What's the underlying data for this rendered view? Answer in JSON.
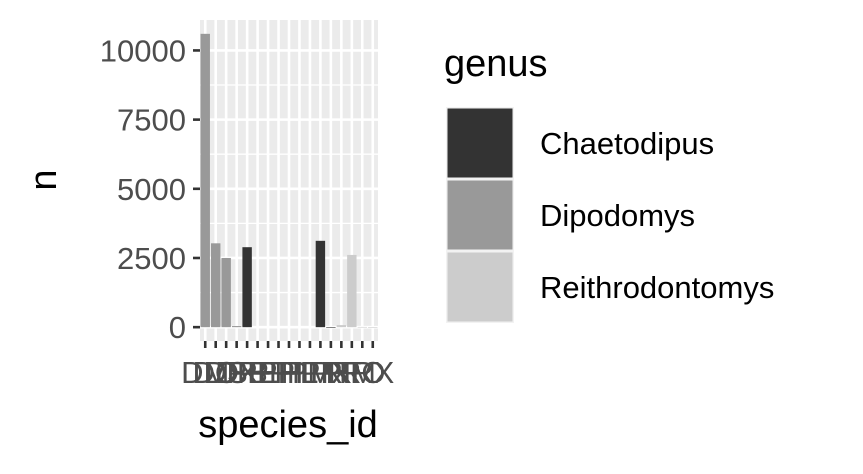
{
  "chart_data": {
    "type": "bar",
    "xlabel": "species_id",
    "ylabel": "n",
    "ylim": [
      -500,
      11100
    ],
    "y_ticks": [
      0,
      2500,
      5000,
      7500,
      10000
    ],
    "grid": true,
    "categories": [
      "DM",
      "DO",
      "DS",
      "DX",
      "PB",
      "PE",
      "PF",
      "PH",
      "PI",
      "PL",
      "PM",
      "PP",
      "PX",
      "RF",
      "RM",
      "RO",
      "RX"
    ],
    "bars": [
      {
        "category": "DM",
        "genus": "Dipodomys",
        "value": 10600
      },
      {
        "category": "DO",
        "genus": "Dipodomys",
        "value": 3030
      },
      {
        "category": "DS",
        "genus": "Dipodomys",
        "value": 2500
      },
      {
        "category": "DX",
        "genus": "Dipodomys",
        "value": 40
      },
      {
        "category": "PB",
        "genus": "Chaetodipus",
        "value": 2890
      },
      {
        "category": "PP",
        "genus": "Chaetodipus",
        "value": 3120
      },
      {
        "category": "PX",
        "genus": "Chaetodipus",
        "value": 6
      },
      {
        "category": "RF",
        "genus": "Reithrodontomys",
        "value": 75
      },
      {
        "category": "RM",
        "genus": "Reithrodontomys",
        "value": 2610
      },
      {
        "category": "RO",
        "genus": "Reithrodontomys",
        "value": 8
      },
      {
        "category": "RX",
        "genus": "Reithrodontomys",
        "value": 2
      }
    ],
    "series": [
      {
        "name": "Chaetodipus",
        "color": "#333333"
      },
      {
        "name": "Dipodomys",
        "color": "#999999"
      },
      {
        "name": "Reithrodontomys",
        "color": "#cccccc"
      }
    ],
    "legend": {
      "title": "genus",
      "placement": "right"
    },
    "panel_background": "#ebebeb",
    "grid_color": "#ffffff"
  }
}
